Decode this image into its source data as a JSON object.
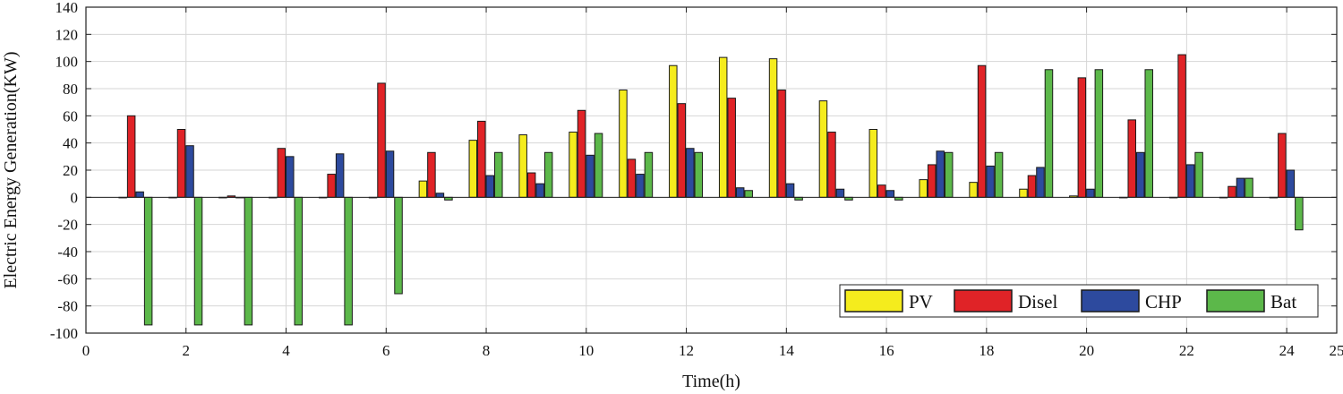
{
  "chart_data": {
    "type": "bar",
    "title": "",
    "xlabel": "Time(h)",
    "ylabel": "Electric Energy Generation(KW)",
    "xlim": [
      0,
      25
    ],
    "ylim": [
      -100,
      140
    ],
    "xticks": [
      0,
      2,
      4,
      6,
      8,
      10,
      12,
      14,
      16,
      18,
      20,
      22,
      24,
      25
    ],
    "yticks": [
      -100,
      -80,
      -60,
      -40,
      -20,
      0,
      20,
      40,
      60,
      80,
      100,
      120,
      140
    ],
    "grid": true,
    "legend_position": "bottom-right",
    "categories": [
      1,
      2,
      3,
      4,
      5,
      6,
      7,
      8,
      9,
      10,
      11,
      12,
      13,
      14,
      15,
      16,
      17,
      18,
      19,
      20,
      21,
      22,
      23,
      24
    ],
    "series": [
      {
        "name": "PV",
        "color": "#f5ec1d",
        "values": [
          0,
          0,
          0,
          0,
          0,
          0,
          12,
          42,
          46,
          48,
          79,
          97,
          103,
          102,
          71,
          50,
          13,
          11,
          6,
          1,
          0,
          0,
          0,
          0
        ]
      },
      {
        "name": "Disel",
        "color": "#e02327",
        "values": [
          60,
          50,
          1,
          36,
          17,
          84,
          33,
          56,
          18,
          64,
          28,
          69,
          73,
          79,
          48,
          9,
          24,
          97,
          16,
          88,
          57,
          105,
          8,
          47
        ]
      },
      {
        "name": "CHP",
        "color": "#2d4a9e",
        "values": [
          4,
          38,
          0,
          30,
          32,
          34,
          3,
          16,
          10,
          31,
          17,
          36,
          7,
          10,
          6,
          5,
          34,
          23,
          22,
          6,
          33,
          24,
          14,
          20
        ]
      },
      {
        "name": "Bat",
        "color": "#5cb84a",
        "values": [
          -94,
          -94,
          -94,
          -94,
          -94,
          -71,
          -2,
          33,
          33,
          47,
          33,
          33,
          5,
          -2,
          -2,
          -2,
          33,
          33,
          94,
          94,
          94,
          33,
          14,
          -24
        ]
      }
    ]
  }
}
